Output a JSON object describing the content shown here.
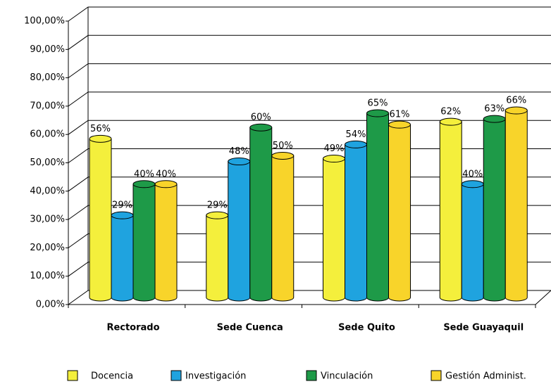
{
  "chart_data": {
    "type": "bar",
    "categories": [
      "Rectorado",
      "Sede Cuenca",
      "Sede Quito",
      "Sede Guayaquil"
    ],
    "series": [
      {
        "name": "Docencia",
        "color": "#f4ef3c",
        "values": [
          56,
          29,
          49,
          62
        ],
        "value_labels": [
          "56%",
          "29%",
          "49%",
          "62%"
        ]
      },
      {
        "name": "Investigación",
        "color": "#1fa3df",
        "values": [
          29,
          48,
          54,
          40
        ],
        "value_labels": [
          "29%",
          "48%",
          "54%",
          "40%"
        ]
      },
      {
        "name": "Vinculación",
        "color": "#1e9a48",
        "values": [
          40,
          60,
          65,
          63
        ],
        "value_labels": [
          "40%",
          "60%",
          "65%",
          "63%"
        ]
      },
      {
        "name": "Gestión Administ.",
        "color": "#f8d42a",
        "values": [
          40,
          50,
          61,
          66
        ],
        "value_labels": [
          "40%",
          "50%",
          "61%",
          "66%"
        ]
      }
    ],
    "ylim": [
      0,
      100
    ],
    "yticks": [
      {
        "value": 0,
        "label": "0,00%"
      },
      {
        "value": 10,
        "label": "10,00%"
      },
      {
        "value": 20,
        "label": "20,00%"
      },
      {
        "value": 30,
        "label": "30,00%"
      },
      {
        "value": 40,
        "label": "40,00%"
      },
      {
        "value": 50,
        "label": "50,00%"
      },
      {
        "value": 60,
        "label": "60,00%"
      },
      {
        "value": 70,
        "label": "70,00%"
      },
      {
        "value": 80,
        "label": "80,00%"
      },
      {
        "value": 90,
        "label": "90,00%"
      },
      {
        "value": 100,
        "label": "100,00%"
      }
    ],
    "grid": true,
    "legend": "bottom"
  }
}
